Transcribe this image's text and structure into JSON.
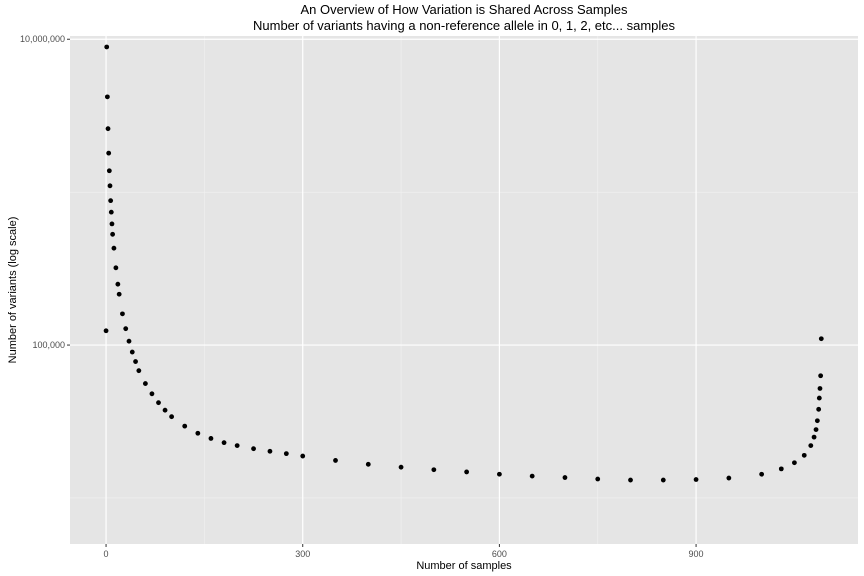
{
  "chart_data": {
    "type": "scatter",
    "title": "An Overview of How Variation is Shared Across Samples",
    "subtitle": "Number of variants having a non-reference allele in 0, 1, 2, etc... samples",
    "xlabel": "Number of samples",
    "ylabel": "Number of variants (log scale)",
    "xlim": [
      -55,
      1147
    ],
    "ylim": [
      5000,
      10500000
    ],
    "log_y": true,
    "grid": true,
    "x_ticks": [
      {
        "value": 0,
        "label": "0"
      },
      {
        "value": 300,
        "label": "300"
      },
      {
        "value": 600,
        "label": "600"
      },
      {
        "value": 900,
        "label": "900"
      }
    ],
    "y_ticks": [
      {
        "value": 100000,
        "label": "100,000"
      },
      {
        "value": 10000000,
        "label": "10,000,000"
      }
    ],
    "series": [
      {
        "color": "#000000",
        "marker": "circle",
        "points": [
          [
            0,
            124000
          ],
          [
            1,
            8900000
          ],
          [
            2,
            4200000
          ],
          [
            3,
            2600000
          ],
          [
            4,
            1800000
          ],
          [
            5,
            1380000
          ],
          [
            6,
            1100000
          ],
          [
            7,
            880000
          ],
          [
            8,
            740000
          ],
          [
            9,
            620000
          ],
          [
            10,
            530000
          ],
          [
            12,
            430000
          ],
          [
            15,
            320000
          ],
          [
            18,
            250000
          ],
          [
            20,
            215000
          ],
          [
            25,
            160000
          ],
          [
            30,
            128000
          ],
          [
            35,
            106000
          ],
          [
            40,
            90000
          ],
          [
            45,
            78000
          ],
          [
            50,
            68000
          ],
          [
            60,
            56000
          ],
          [
            70,
            48000
          ],
          [
            80,
            42000
          ],
          [
            90,
            37500
          ],
          [
            100,
            34000
          ],
          [
            120,
            29500
          ],
          [
            140,
            26500
          ],
          [
            160,
            24500
          ],
          [
            180,
            23000
          ],
          [
            200,
            22000
          ],
          [
            225,
            21000
          ],
          [
            250,
            20200
          ],
          [
            275,
            19500
          ],
          [
            300,
            18800
          ],
          [
            350,
            17600
          ],
          [
            400,
            16600
          ],
          [
            450,
            15900
          ],
          [
            500,
            15300
          ],
          [
            550,
            14800
          ],
          [
            600,
            14300
          ],
          [
            650,
            13900
          ],
          [
            700,
            13600
          ],
          [
            750,
            13300
          ],
          [
            800,
            13100
          ],
          [
            850,
            13100
          ],
          [
            900,
            13200
          ],
          [
            950,
            13500
          ],
          [
            1000,
            14300
          ],
          [
            1030,
            15500
          ],
          [
            1050,
            17000
          ],
          [
            1065,
            19000
          ],
          [
            1075,
            22000
          ],
          [
            1080,
            25000
          ],
          [
            1083,
            28000
          ],
          [
            1085,
            32000
          ],
          [
            1087,
            38000
          ],
          [
            1088,
            45000
          ],
          [
            1089,
            52000
          ],
          [
            1090,
            63000
          ],
          [
            1091,
            110000
          ]
        ]
      }
    ]
  }
}
